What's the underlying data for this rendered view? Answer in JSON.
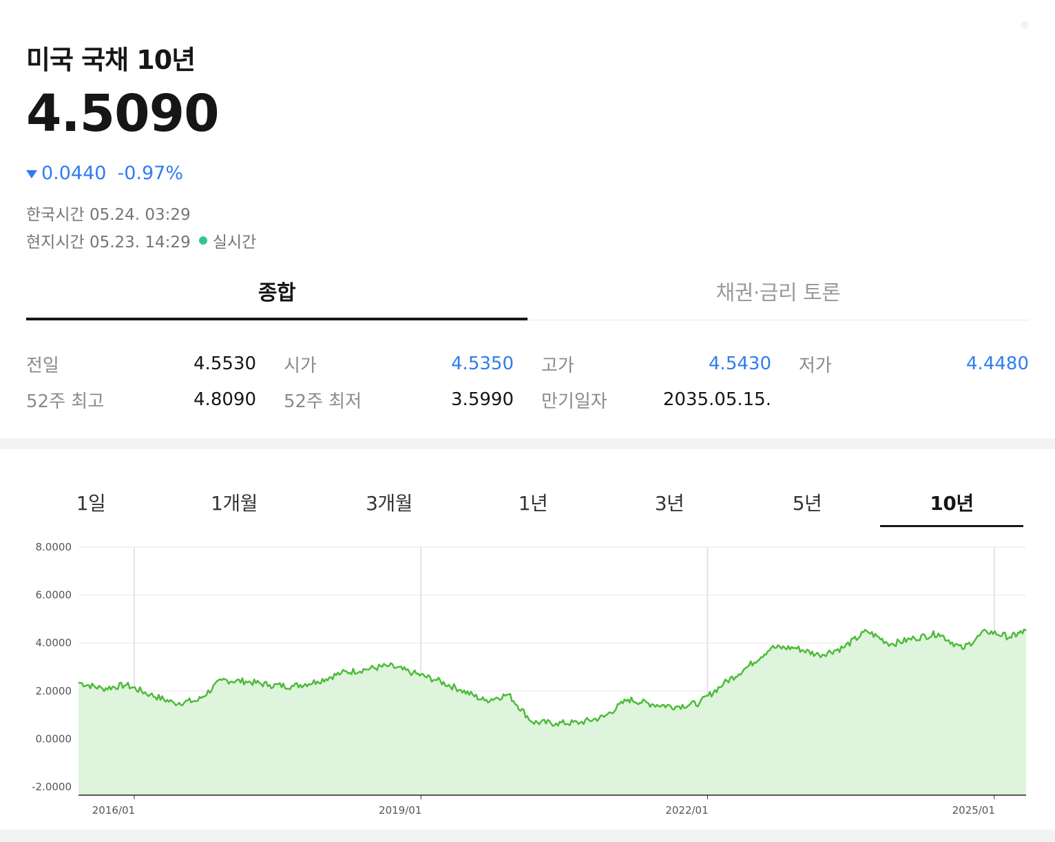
{
  "header": {
    "title": "미국 국채 10년",
    "price": "4.5090",
    "change": "0.0440",
    "change_pct": "-0.97%",
    "direction": "down",
    "korea_time": "한국시간 05.24. 03:29",
    "local_time": "현지시간 05.23. 14:29",
    "live_label": "실시간",
    "colors": {
      "down": "#2f7cf0",
      "live": "#34c58f"
    }
  },
  "tabs": [
    {
      "label": "종합",
      "active": true
    },
    {
      "label": "채권·금리 토론",
      "active": false
    }
  ],
  "stats": [
    {
      "label": "전일",
      "value": "4.5530",
      "blue": false
    },
    {
      "label": "시가",
      "value": "4.5350",
      "blue": true
    },
    {
      "label": "고가",
      "value": "4.5430",
      "blue": true
    },
    {
      "label": "저가",
      "value": "4.4480",
      "blue": true
    },
    {
      "label": "52주 최고",
      "value": "4.8090",
      "blue": false
    },
    {
      "label": "52주 최저",
      "value": "3.5990",
      "blue": false
    },
    {
      "label": "만기일자",
      "value": "2035.05.15.",
      "blue": false
    }
  ],
  "period_tabs": [
    {
      "label": "1일",
      "active": false
    },
    {
      "label": "1개월",
      "active": false
    },
    {
      "label": "3개월",
      "active": false
    },
    {
      "label": "1년",
      "active": false
    },
    {
      "label": "3년",
      "active": false
    },
    {
      "label": "5년",
      "active": false
    },
    {
      "label": "10년",
      "active": true
    }
  ],
  "chart_data": {
    "type": "area",
    "title": "",
    "xlabel": "",
    "ylabel": "",
    "ylim": [
      -2,
      8
    ],
    "xlim": [
      "2015-06",
      "2025-05"
    ],
    "y_ticks": [
      "8.0000",
      "6.0000",
      "4.0000",
      "2.0000",
      "0.0000",
      "-2.0000"
    ],
    "x_ticks": [
      "2016/01",
      "2019/01",
      "2022/01",
      "2025/01"
    ],
    "grid": true,
    "line_color": "#4cbb3a",
    "fill_color": "#dff4dc",
    "x": [
      "2015-06",
      "2015-09",
      "2015-12",
      "2016-03",
      "2016-06",
      "2016-09",
      "2016-12",
      "2017-03",
      "2017-06",
      "2017-09",
      "2017-12",
      "2018-03",
      "2018-06",
      "2018-09",
      "2018-12",
      "2019-03",
      "2019-06",
      "2019-09",
      "2019-12",
      "2020-03",
      "2020-06",
      "2020-09",
      "2020-12",
      "2021-03",
      "2021-06",
      "2021-09",
      "2021-12",
      "2022-03",
      "2022-06",
      "2022-09",
      "2022-12",
      "2023-03",
      "2023-06",
      "2023-09",
      "2023-12",
      "2024-03",
      "2024-06",
      "2024-09",
      "2024-12",
      "2025-03",
      "2025-05"
    ],
    "values": [
      2.35,
      2.1,
      2.25,
      1.85,
      1.5,
      1.6,
      2.45,
      2.4,
      2.25,
      2.2,
      2.4,
      2.75,
      2.9,
      3.05,
      2.75,
      2.45,
      2.05,
      1.6,
      1.85,
      0.7,
      0.65,
      0.68,
      0.92,
      1.65,
      1.45,
      1.35,
      1.5,
      2.3,
      3.0,
      3.8,
      3.8,
      3.5,
      3.8,
      4.5,
      3.95,
      4.2,
      4.4,
      3.75,
      4.5,
      4.25,
      4.51
    ]
  }
}
